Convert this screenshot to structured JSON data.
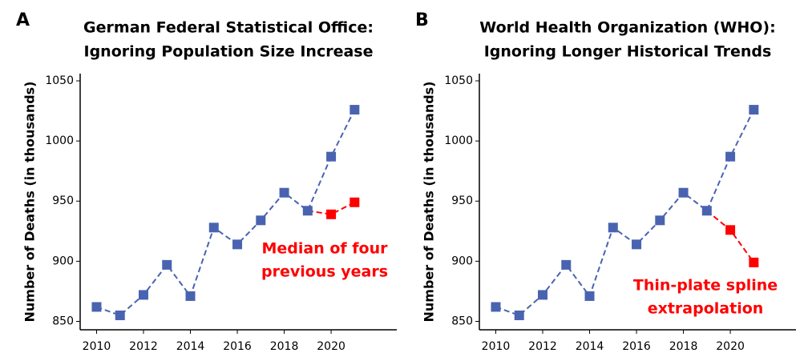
{
  "chart_data": [
    {
      "type": "line",
      "panel": "A",
      "title": [
        "German Federal Statistical Office:",
        "Ignoring Population Size Increase"
      ],
      "y_label": "Number of Deaths (in thousands)",
      "x": [
        2010,
        2011,
        2012,
        2013,
        2014,
        2015,
        2016,
        2017,
        2018,
        2019,
        2020,
        2021
      ],
      "series": [
        {
          "color": "#4a63b1",
          "values": [
            862,
            855,
            872,
            897,
            871,
            928,
            914,
            934,
            957,
            942,
            987,
            1026
          ]
        },
        {
          "color": "#ff0000",
          "values": [
            null,
            null,
            null,
            null,
            null,
            null,
            null,
            null,
            null,
            942,
            939,
            949
          ]
        }
      ],
      "annotation": [
        "Median of four",
        "previous years"
      ],
      "annotation_color": "#ff0000",
      "xlim": [
        2009.3,
        2022.8
      ],
      "xticks": [
        2010,
        2012,
        2014,
        2016,
        2018,
        2020
      ],
      "ylim": [
        843,
        1056
      ],
      "yticks": [
        850,
        900,
        950,
        1000,
        1050
      ]
    },
    {
      "type": "line",
      "panel": "B",
      "title": [
        "World Health Organization (WHO):",
        "Ignoring Longer Historical Trends"
      ],
      "y_label": "Number of Deaths (in thousands)",
      "x": [
        2010,
        2011,
        2012,
        2013,
        2014,
        2015,
        2016,
        2017,
        2018,
        2019,
        2020,
        2021
      ],
      "series": [
        {
          "color": "#4a63b1",
          "values": [
            862,
            855,
            872,
            897,
            871,
            928,
            914,
            934,
            957,
            942,
            987,
            1026
          ]
        },
        {
          "color": "#ff0000",
          "values": [
            null,
            null,
            null,
            null,
            null,
            null,
            null,
            null,
            null,
            942,
            926,
            899
          ]
        }
      ],
      "annotation": [
        "Thin-plate spline",
        "extrapolation"
      ],
      "annotation_color": "#ff0000",
      "xlim": [
        2009.3,
        2022.8
      ],
      "xticks": [
        2010,
        2012,
        2014,
        2016,
        2018,
        2020
      ],
      "ylim": [
        843,
        1056
      ],
      "yticks": [
        850,
        900,
        950,
        1000,
        1050
      ]
    }
  ]
}
